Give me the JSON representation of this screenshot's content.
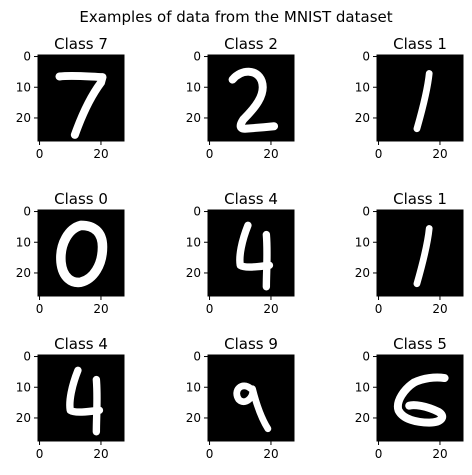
{
  "figure": {
    "title": "Examples of data from the MNIST dataset",
    "panel_title_prefix": "Class"
  },
  "chart_data": {
    "type": "heatmap",
    "title": "Examples of data from the MNIST dataset",
    "colormap": "gray",
    "image_size": [
      28,
      28
    ],
    "x_ticks": [
      0,
      20
    ],
    "y_ticks": [
      0,
      10,
      20
    ],
    "xlim": [
      -0.5,
      27.5
    ],
    "ylim": [
      27.5,
      -0.5
    ],
    "grid": false,
    "panels": [
      {
        "title": "Class 7",
        "label": 7
      },
      {
        "title": "Class 2",
        "label": 2
      },
      {
        "title": "Class 1",
        "label": 1
      },
      {
        "title": "Class 0",
        "label": 0
      },
      {
        "title": "Class 4",
        "label": 4
      },
      {
        "title": "Class 1",
        "label": 1
      },
      {
        "title": "Class 4",
        "label": 4
      },
      {
        "title": "Class 9",
        "label": 9
      },
      {
        "title": "Class 5",
        "label": 5
      }
    ]
  },
  "colors": {
    "image_background": "#000000",
    "digit_stroke": "#ffffff",
    "axes": "#000000"
  }
}
